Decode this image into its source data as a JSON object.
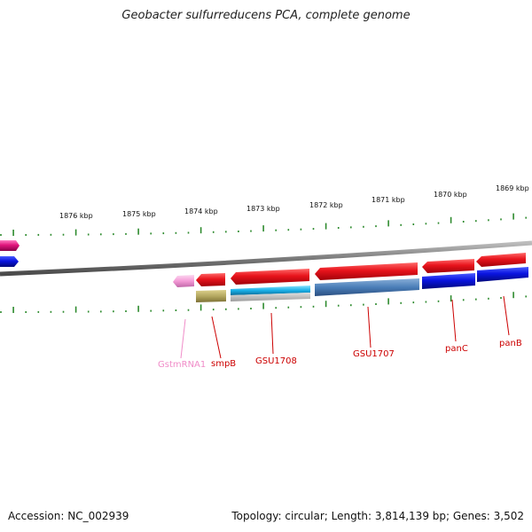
{
  "title": "Geobacter sulfurreducens PCA, complete genome",
  "footer": {
    "accession": "Accession: NC_002939",
    "summary": "Topology: circular; Length: 3,814,139 bp; Genes: 3,502"
  },
  "colors": {
    "backbone": "#8c8c8c",
    "tick": "#2e8b2e",
    "gene_red": "#e8141c",
    "gene_blue": "#0a14e0",
    "gene_magenta": "#e0147c",
    "gene_pink": "#f49ad6",
    "cds_cyan": "#1ab0e8",
    "cds_steel": "#4a7eb8",
    "cds_olive": "#b4a860",
    "label_red": "#cc0000",
    "label_pink": "#f08cc8"
  },
  "ruler": {
    "unit": "kbp",
    "labels": [
      "1876 kbp",
      "1875 kbp",
      "1874 kbp",
      "1873 kbp",
      "1872 kbp",
      "1871 kbp",
      "1870 kbp",
      "1869 kbp"
    ]
  },
  "genes": [
    {
      "name": "GstmRNA1",
      "color": "label_pink"
    },
    {
      "name": "smpB",
      "color": "label_red"
    },
    {
      "name": "GSU1708",
      "color": "label_red"
    },
    {
      "name": "GSU1707",
      "color": "label_red"
    },
    {
      "name": "panC",
      "color": "label_red"
    },
    {
      "name": "panB",
      "color": "label_red"
    }
  ]
}
